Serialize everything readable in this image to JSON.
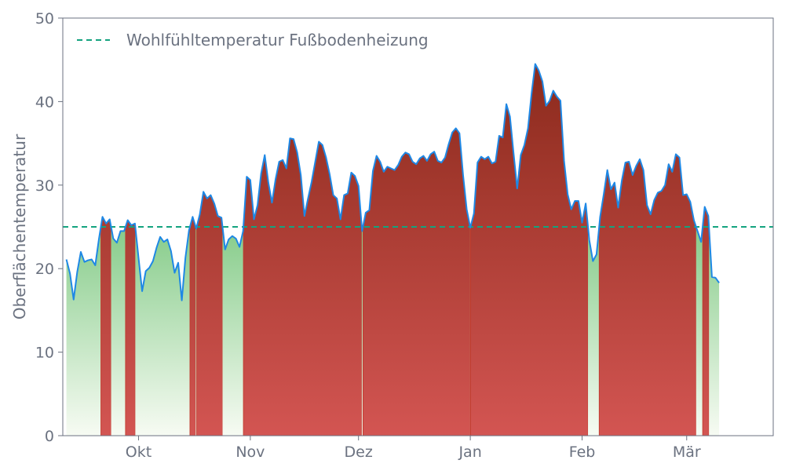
{
  "chart_data": {
    "type": "area",
    "title": "",
    "xlabel": "",
    "ylabel": "Oberflächentemperatur",
    "ylim": [
      0,
      50
    ],
    "yticks": [
      0,
      10,
      20,
      30,
      40,
      50
    ],
    "x_start": "2023-09-10",
    "x_end": "2024-03-25",
    "xticks": [
      {
        "date": "2023-10-01",
        "label": "Okt"
      },
      {
        "date": "2023-11-01",
        "label": "Nov"
      },
      {
        "date": "2023-12-01",
        "label": "Dez"
      },
      {
        "date": "2024-01-01",
        "label": "Jan"
      },
      {
        "date": "2024-02-01",
        "label": "Feb"
      },
      {
        "date": "2024-03-01",
        "label": "Mär"
      }
    ],
    "threshold": {
      "value": 25,
      "label": "Wohlfühltemperatur Fußbodenheizung"
    },
    "grid": false,
    "legend_position": "top-left",
    "series": [
      {
        "start_date": "2023-09-11",
        "values": [
          21.1,
          19.4,
          16.3,
          19.6,
          22.0,
          20.8,
          21.0,
          21.1,
          20.4,
          23.5,
          26.2,
          25.4,
          25.9,
          23.6,
          23.1,
          24.5,
          24.5,
          25.8,
          25.2,
          25.4,
          21.3,
          17.3,
          19.7,
          20.1,
          20.9,
          22.5,
          23.8,
          23.2,
          23.5,
          22.1,
          19.5,
          20.7,
          16.2,
          21.3,
          24.6,
          26.2,
          24.8,
          26.5,
          29.2,
          28.4,
          28.8,
          27.8,
          26.3,
          26.1,
          22.3,
          23.5,
          23.9,
          23.6,
          22.6,
          24.5,
          31.0,
          30.6,
          25.9,
          27.6,
          31.4,
          33.6,
          30.3,
          27.9,
          30.7,
          32.8,
          33.0,
          32.0,
          35.6,
          35.5,
          33.9,
          31.2,
          26.3,
          28.4,
          30.4,
          32.8,
          35.2,
          34.8,
          33.3,
          31.3,
          28.8,
          28.4,
          25.9,
          28.8,
          29.0,
          31.5,
          31.1,
          29.9,
          24.5,
          26.7,
          27.0,
          31.7,
          33.5,
          32.8,
          31.6,
          32.2,
          32.0,
          31.8,
          32.4,
          33.4,
          33.9,
          33.7,
          32.8,
          32.5,
          33.2,
          33.5,
          32.9,
          33.7,
          34.0,
          32.9,
          32.7,
          33.3,
          34.9,
          36.3,
          36.8,
          36.2,
          31.2,
          27.1,
          24.9,
          26.6,
          32.7,
          33.4,
          33.1,
          33.4,
          32.6,
          32.8,
          35.9,
          35.7,
          39.7,
          38.2,
          33.8,
          29.6,
          33.6,
          34.8,
          36.8,
          41.0,
          44.5,
          43.7,
          42.4,
          39.5,
          40.1,
          41.3,
          40.6,
          40.1,
          32.9,
          28.9,
          27.1,
          28.1,
          28.1,
          25.5,
          27.8,
          23.4,
          20.9,
          21.7,
          26.2,
          28.9,
          31.8,
          29.5,
          30.3,
          27.3,
          30.5,
          32.7,
          32.8,
          31.2,
          32.3,
          33.1,
          31.8,
          27.6,
          26.5,
          28.2,
          29.1,
          29.3,
          30.0,
          32.5,
          31.6,
          33.7,
          33.3,
          28.8,
          28.9,
          28.0,
          25.8,
          24.5,
          23.2,
          27.4,
          26.3,
          19.0,
          18.9,
          18.3
        ]
      }
    ],
    "colors": {
      "line": "#1e88e5",
      "threshold": "#14a37f",
      "above_top": "#8b2a1c",
      "above_bottom": "#d35552",
      "below_top": "#86cc8a",
      "below_bottom": "#f7fbf3",
      "axis": "#6b7280"
    }
  }
}
